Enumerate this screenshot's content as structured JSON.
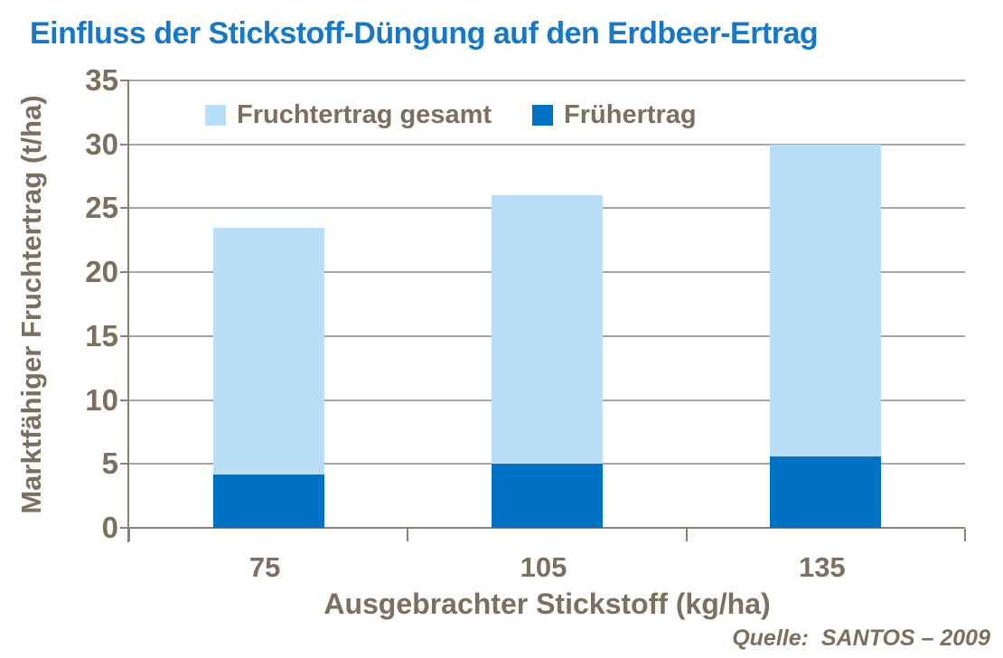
{
  "title": "Einfluss der Stickstoff-Düngung auf den Erdbeer-Ertrag",
  "source": "Quelle:  SANTOS – 2009",
  "colors": {
    "title_blue": "#1878c6",
    "text_brown": "#7b7060",
    "grid_gray": "#a6a6a6",
    "axis_brown": "#8c8170",
    "light_blue": "#b9def8",
    "dark_blue": "#0071c4"
  },
  "chart_data": {
    "type": "bar",
    "stacking": "overlay-total",
    "title": "Einfluss der Stickstoff-Düngung auf den Erdbeer-Ertrag",
    "categories": [
      "75",
      "105",
      "135"
    ],
    "series": [
      {
        "name": "Fruchtertrag gesamt",
        "color": "#b9def8",
        "values": [
          23.5,
          26,
          30
        ]
      },
      {
        "name": "Frühertrag",
        "color": "#0071c4",
        "values": [
          4.2,
          5,
          5.6
        ]
      }
    ],
    "xlabel": "Ausgebrachter Stickstoff (kg/ha)",
    "ylabel": "Marktfähiger Fruchtertrag (t/ha)",
    "ylim": [
      0,
      35
    ],
    "ytick_step": 5,
    "yticks": [
      0,
      5,
      10,
      15,
      20,
      25,
      30,
      35
    ],
    "grid": true,
    "legend_position": "top-inside"
  }
}
